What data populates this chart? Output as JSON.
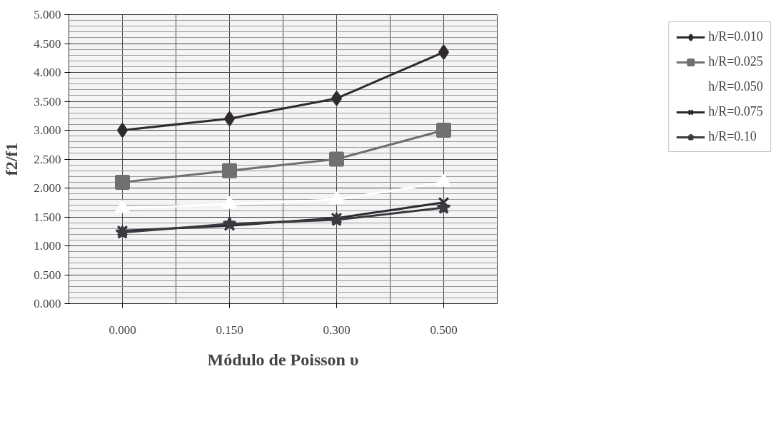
{
  "chart_data": {
    "type": "line",
    "xlabel": "Módulo de Poisson υ",
    "ylabel": "f2/f1",
    "categories": [
      "0.000",
      "0.150",
      "0.300",
      "0.500"
    ],
    "ylim": [
      0,
      5
    ],
    "yticks": [
      {
        "value": 0,
        "label": "0.000"
      },
      {
        "value": 0.5,
        "label": "0.500"
      },
      {
        "value": 1,
        "label": "1.000"
      },
      {
        "value": 1.5,
        "label": "1.500"
      },
      {
        "value": 2,
        "label": "2.000"
      },
      {
        "value": 2.5,
        "label": "2.500"
      },
      {
        "value": 3,
        "label": "3.000"
      },
      {
        "value": 3.5,
        "label": "3.500"
      },
      {
        "value": 4,
        "label": "4.000"
      },
      {
        "value": 4.5,
        "label": "4.500"
      },
      {
        "value": 5,
        "label": "5.000"
      }
    ],
    "grid": true,
    "legend": "right",
    "series": [
      {
        "name": "h/R=0.010",
        "color": "#2e2a2e",
        "marker": "diamond",
        "values": [
          3.0,
          3.2,
          3.55,
          4.35
        ]
      },
      {
        "name": "h/R=0.025",
        "color": "#707070",
        "marker": "square",
        "values": [
          2.1,
          2.3,
          2.5,
          3.0
        ]
      },
      {
        "name": "h/R=0.050",
        "color": "#ffffff",
        "marker": "triangle",
        "values": [
          1.65,
          1.72,
          1.8,
          2.1
        ]
      },
      {
        "name": "h/R=0.075",
        "color": "#2a2a30",
        "marker": "cross",
        "values": [
          1.26,
          1.35,
          1.48,
          1.75
        ]
      },
      {
        "name": "h/R=0.10",
        "color": "#3a3a40",
        "marker": "star",
        "values": [
          1.23,
          1.38,
          1.45,
          1.66
        ]
      }
    ]
  }
}
